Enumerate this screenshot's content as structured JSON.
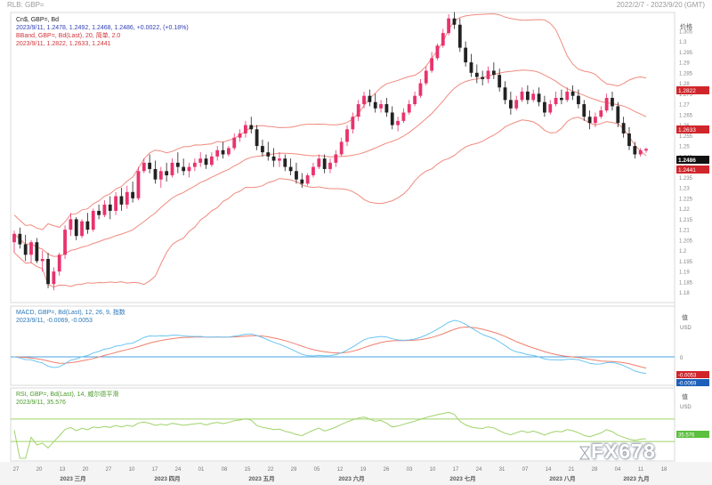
{
  "header": {
    "left_text": "RLB: GBP=",
    "right_text": "2022/2/7 - 2023/9/20 (GMT)"
  },
  "price_panel": {
    "instrument_line": "Cn$, GBP=, Bd",
    "ohlc_line": "2023/9/11, 1.2478, 1.2492, 1.2468, 1.2486, +0.0022, (+0.18%)",
    "bband_line": "BBand, GBP=, Bd(Last), 20, 简单, 2.0",
    "bband_values_line": "2023/9/11, 1.2822, 1.2633, 1.2441",
    "axis_title": "价格",
    "last_price_badge": "1.2486",
    "upper_band_badge": "1.2822",
    "middle_band_badge": "1.2633",
    "lower_band_badge": "1.2441"
  },
  "macd_panel": {
    "title_line": "MACD, GBP=, Bd(Last), 12, 26, 9, 指数",
    "values_line": "2023/9/11, -0.0069, -0.0053",
    "axis_title": "值",
    "axis_unit": "USD",
    "macd_badge": "-0.0069",
    "signal_badge": "-0.0053"
  },
  "rsi_panel": {
    "title_line": "RSI, GBP=, Bd(Last), 14, 威尔德平滑",
    "values_line": "2023/9/11, 35.576",
    "axis_title": "值",
    "axis_unit": "USD",
    "rsi_badge": "35.576"
  },
  "x_axis": {
    "day_ticks": [
      "27",
      "20",
      "13",
      "20",
      "27",
      "10",
      "17",
      "24",
      "01",
      "08",
      "15",
      "22",
      "29",
      "05",
      "12",
      "19",
      "26",
      "03",
      "10",
      "17",
      "24",
      "31",
      "07",
      "14",
      "21",
      "28",
      "04",
      "11",
      "18"
    ],
    "month_labels": [
      "2023 三月",
      "2023 四月",
      "2023 五月",
      "2023 六月",
      "2023 七月",
      "2023 八月",
      "2023 九月"
    ]
  },
  "watermark": {
    "text": "FX678"
  },
  "colors": {
    "up_candle": "#e8336d",
    "down_candle": "#222222",
    "bollinger": "#f08a7e",
    "macd_line": "#6cc4f2",
    "signal_line": "#ef7f6e",
    "zero_line": "#4aa3e0",
    "rsi_line": "#9fd36a",
    "rsi_bounds": "#9fd36a",
    "badge_red": "#d0262b",
    "badge_dark": "#111111",
    "badge_blue": "#1b5fb8",
    "badge_green": "#5cbf3e"
  },
  "chart_data": [
    {
      "type": "candlestick",
      "panel": "price",
      "series": [
        {
          "name": "Cn$, GBP=, Bd",
          "last": {
            "date": "2023/9/11",
            "open": 1.2478,
            "high": 1.2492,
            "low": 1.2468,
            "close": 1.2486,
            "change": 0.0022,
            "change_pct": 0.18
          }
        },
        {
          "name": "BBand upper",
          "last": {
            "date": "2023/9/11",
            "value": 1.2822
          }
        },
        {
          "name": "BBand middle",
          "last": {
            "date": "2023/9/11",
            "value": 1.2633
          }
        },
        {
          "name": "BBand lower",
          "last": {
            "date": "2023/9/11",
            "value": 1.2441
          }
        }
      ],
      "y_axis": {
        "ticks": [
          1.305,
          1.3,
          1.295,
          1.29,
          1.285,
          1.28,
          1.275,
          1.27,
          1.265,
          1.26,
          1.255,
          1.25,
          1.245,
          1.24,
          1.235,
          1.23,
          1.225,
          1.22,
          1.215,
          1.21,
          1.205,
          1.2,
          1.195,
          1.19,
          1.185,
          1.18
        ],
        "ylim": [
          1.176,
          1.313
        ]
      },
      "candles_approx": [
        [
          1.204,
          1.2095,
          1.199,
          1.208
        ],
        [
          1.208,
          1.211,
          1.201,
          1.203
        ],
        [
          1.203,
          1.2075,
          1.195,
          1.198
        ],
        [
          1.198,
          1.205,
          1.194,
          1.204
        ],
        [
          1.204,
          1.206,
          1.194,
          1.195
        ],
        [
          1.195,
          1.2,
          1.19,
          1.196
        ],
        [
          1.196,
          1.199,
          1.182,
          1.184
        ],
        [
          1.184,
          1.192,
          1.181,
          1.19
        ],
        [
          1.19,
          1.199,
          1.188,
          1.198
        ],
        [
          1.198,
          1.212,
          1.196,
          1.21
        ],
        [
          1.21,
          1.218,
          1.207,
          1.215
        ],
        [
          1.215,
          1.216,
          1.205,
          1.207
        ],
        [
          1.207,
          1.215,
          1.206,
          1.214
        ],
        [
          1.214,
          1.218,
          1.208,
          1.21
        ],
        [
          1.21,
          1.22,
          1.209,
          1.219
        ],
        [
          1.219,
          1.222,
          1.215,
          1.217
        ],
        [
          1.217,
          1.224,
          1.216,
          1.222
        ],
        [
          1.222,
          1.226,
          1.215,
          1.219
        ],
        [
          1.219,
          1.228,
          1.217,
          1.226
        ],
        [
          1.226,
          1.23,
          1.219,
          1.222
        ],
        [
          1.222,
          1.231,
          1.22,
          1.228
        ],
        [
          1.228,
          1.233,
          1.223,
          1.225
        ],
        [
          1.225,
          1.24,
          1.224,
          1.238
        ],
        [
          1.238,
          1.244,
          1.237,
          1.242
        ],
        [
          1.242,
          1.246,
          1.237,
          1.239
        ],
        [
          1.239,
          1.243,
          1.232,
          1.234
        ],
        [
          1.234,
          1.24,
          1.23,
          1.238
        ],
        [
          1.238,
          1.242,
          1.233,
          1.236
        ],
        [
          1.236,
          1.244,
          1.235,
          1.242
        ],
        [
          1.242,
          1.247,
          1.237,
          1.24
        ],
        [
          1.24,
          1.244,
          1.236,
          1.238
        ],
        [
          1.238,
          1.242,
          1.235,
          1.24
        ],
        [
          1.24,
          1.244,
          1.238,
          1.242
        ],
        [
          1.242,
          1.247,
          1.24,
          1.244
        ],
        [
          1.244,
          1.246,
          1.239,
          1.241
        ],
        [
          1.241,
          1.247,
          1.24,
          1.245
        ],
        [
          1.245,
          1.25,
          1.243,
          1.248
        ],
        [
          1.248,
          1.252,
          1.244,
          1.246
        ],
        [
          1.246,
          1.25,
          1.245,
          1.249
        ],
        [
          1.249,
          1.256,
          1.248,
          1.254
        ],
        [
          1.254,
          1.258,
          1.252,
          1.256
        ],
        [
          1.256,
          1.262,
          1.254,
          1.26
        ],
        [
          1.26,
          1.264,
          1.256,
          1.258
        ],
        [
          1.258,
          1.26,
          1.248,
          1.25
        ],
        [
          1.25,
          1.253,
          1.245,
          1.247
        ],
        [
          1.247,
          1.252,
          1.243,
          1.245
        ],
        [
          1.245,
          1.249,
          1.24,
          1.243
        ],
        [
          1.243,
          1.247,
          1.24,
          1.244
        ],
        [
          1.244,
          1.246,
          1.238,
          1.24
        ],
        [
          1.24,
          1.244,
          1.236,
          1.238
        ],
        [
          1.238,
          1.242,
          1.232,
          1.234
        ],
        [
          1.234,
          1.237,
          1.23,
          1.232
        ],
        [
          1.232,
          1.237,
          1.231,
          1.236
        ],
        [
          1.236,
          1.242,
          1.235,
          1.24
        ],
        [
          1.24,
          1.246,
          1.239,
          1.244
        ],
        [
          1.244,
          1.246,
          1.237,
          1.239
        ],
        [
          1.239,
          1.244,
          1.237,
          1.242
        ],
        [
          1.242,
          1.248,
          1.24,
          1.246
        ],
        [
          1.246,
          1.254,
          1.245,
          1.252
        ],
        [
          1.252,
          1.26,
          1.25,
          1.258
        ],
        [
          1.258,
          1.266,
          1.256,
          1.264
        ],
        [
          1.264,
          1.272,
          1.262,
          1.27
        ],
        [
          1.27,
          1.276,
          1.268,
          1.274
        ],
        [
          1.274,
          1.277,
          1.269,
          1.271
        ],
        [
          1.271,
          1.275,
          1.266,
          1.268
        ],
        [
          1.268,
          1.272,
          1.266,
          1.27
        ],
        [
          1.27,
          1.273,
          1.264,
          1.266
        ],
        [
          1.266,
          1.269,
          1.258,
          1.26
        ],
        [
          1.26,
          1.264,
          1.257,
          1.262
        ],
        [
          1.262,
          1.268,
          1.261,
          1.266
        ],
        [
          1.266,
          1.272,
          1.265,
          1.27
        ],
        [
          1.27,
          1.276,
          1.269,
          1.274
        ],
        [
          1.274,
          1.282,
          1.273,
          1.28
        ],
        [
          1.28,
          1.288,
          1.279,
          1.286
        ],
        [
          1.286,
          1.295,
          1.285,
          1.292
        ],
        [
          1.292,
          1.299,
          1.291,
          1.298
        ],
        [
          1.298,
          1.306,
          1.297,
          1.304
        ],
        [
          1.304,
          1.313,
          1.303,
          1.311
        ],
        [
          1.311,
          1.314,
          1.306,
          1.308
        ],
        [
          1.308,
          1.311,
          1.295,
          1.297
        ],
        [
          1.297,
          1.3,
          1.288,
          1.29
        ],
        [
          1.29,
          1.294,
          1.283,
          1.285
        ],
        [
          1.285,
          1.289,
          1.28,
          1.283
        ],
        [
          1.283,
          1.286,
          1.279,
          1.282
        ],
        [
          1.282,
          1.288,
          1.28,
          1.286
        ],
        [
          1.286,
          1.29,
          1.282,
          1.284
        ],
        [
          1.284,
          1.287,
          1.276,
          1.278
        ],
        [
          1.278,
          1.281,
          1.27,
          1.272
        ],
        [
          1.272,
          1.276,
          1.265,
          1.268
        ],
        [
          1.268,
          1.274,
          1.267,
          1.272
        ],
        [
          1.272,
          1.278,
          1.271,
          1.276
        ],
        [
          1.276,
          1.279,
          1.27,
          1.272
        ],
        [
          1.272,
          1.277,
          1.271,
          1.275
        ],
        [
          1.275,
          1.278,
          1.269,
          1.271
        ],
        [
          1.271,
          1.274,
          1.264,
          1.266
        ],
        [
          1.266,
          1.272,
          1.265,
          1.27
        ],
        [
          1.27,
          1.276,
          1.269,
          1.273
        ],
        [
          1.273,
          1.277,
          1.27,
          1.272
        ],
        [
          1.272,
          1.278,
          1.271,
          1.276
        ],
        [
          1.276,
          1.279,
          1.272,
          1.274
        ],
        [
          1.274,
          1.277,
          1.268,
          1.27
        ],
        [
          1.27,
          1.272,
          1.262,
          1.264
        ],
        [
          1.264,
          1.267,
          1.258,
          1.261
        ],
        [
          1.261,
          1.266,
          1.259,
          1.264
        ],
        [
          1.264,
          1.269,
          1.263,
          1.267
        ],
        [
          1.267,
          1.275,
          1.266,
          1.273
        ],
        [
          1.273,
          1.276,
          1.267,
          1.269
        ],
        [
          1.269,
          1.271,
          1.259,
          1.261
        ],
        [
          1.261,
          1.264,
          1.254,
          1.256
        ],
        [
          1.256,
          1.259,
          1.248,
          1.25
        ],
        [
          1.25,
          1.252,
          1.244,
          1.246
        ],
        [
          1.246,
          1.249,
          1.245,
          1.248
        ],
        [
          1.2478,
          1.2492,
          1.2468,
          1.2486
        ]
      ]
    },
    {
      "type": "line",
      "panel": "macd",
      "series": [
        {
          "name": "MACD",
          "last": {
            "date": "2023/9/11",
            "value": -0.0069
          }
        },
        {
          "name": "Signal",
          "last": {
            "date": "2023/9/11",
            "value": -0.0053
          }
        }
      ],
      "zero_line": 0
    },
    {
      "type": "line",
      "panel": "rsi",
      "series": [
        {
          "name": "RSI",
          "last": {
            "date": "2023/9/11",
            "value": 35.576
          }
        }
      ],
      "bounds": [
        30,
        70
      ]
    }
  ]
}
